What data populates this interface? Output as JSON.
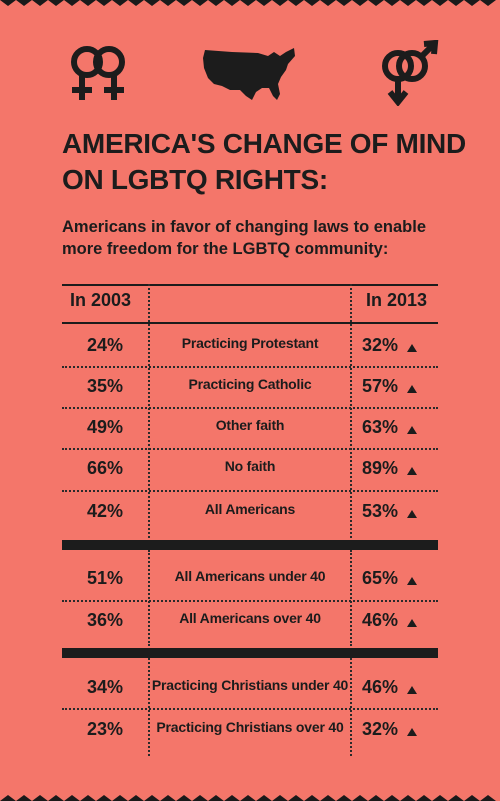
{
  "title_line1": "AMERICA'S CHANGE OF MIND",
  "title_line2": "ON LGBTQ RIGHTS:",
  "subtitle_line1": "Americans in favor of changing laws to enable",
  "subtitle_line2": "more freedom for the LGBTQ community:",
  "header": {
    "left": "In 2003",
    "right": "In 2013"
  },
  "icons": [
    "female-female-symbol-icon",
    "usa-map-icon",
    "male-male-symbol-icon"
  ],
  "colors": {
    "background": "#f4766a",
    "ink": "#1c1c1c"
  },
  "rows": [
    {
      "label": "Practicing Protestant",
      "in_2003": "24%",
      "in_2013": "32%"
    },
    {
      "label": "Practicing Catholic",
      "in_2003": "35%",
      "in_2013": "57%"
    },
    {
      "label": "Other faith",
      "in_2003": "49%",
      "in_2013": "63%"
    },
    {
      "label": "No faith",
      "in_2003": "66%",
      "in_2013": "89%"
    },
    {
      "label": "All Americans",
      "in_2003": "42%",
      "in_2013": "53%"
    },
    {
      "label": "All Americans under 40",
      "in_2003": "51%",
      "in_2013": "65%"
    },
    {
      "label": "All Americans over 40",
      "in_2003": "36%",
      "in_2013": "46%"
    },
    {
      "label": "Practicing Christians under 40",
      "in_2003": "34%",
      "in_2013": "46%"
    },
    {
      "label": "Practicing Christians over 40",
      "in_2003": "23%",
      "in_2013": "32%"
    }
  ]
}
